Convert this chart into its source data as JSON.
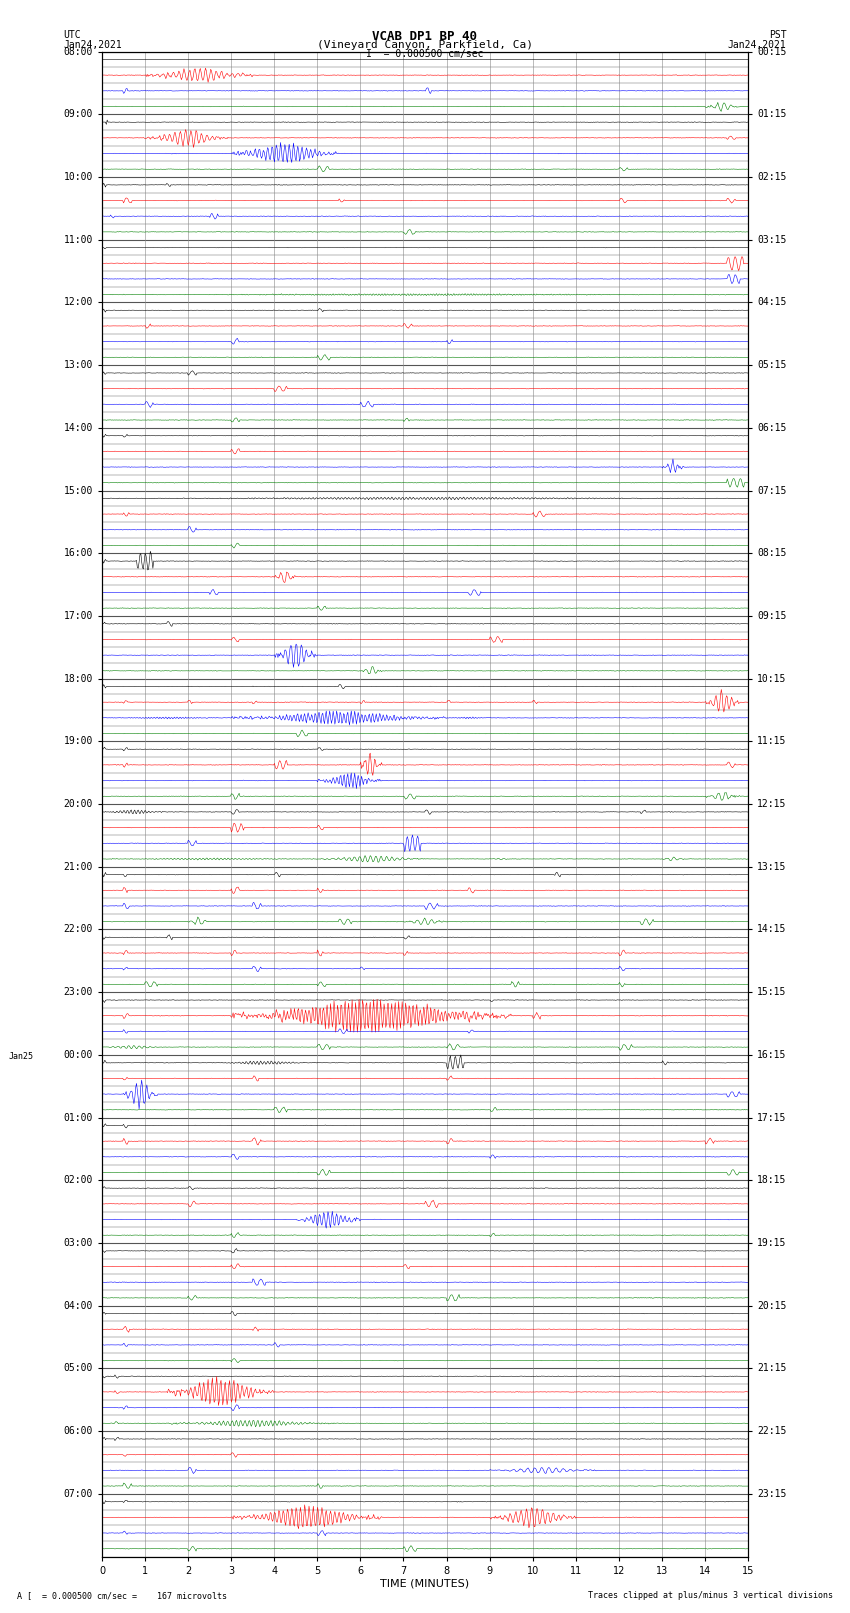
{
  "title_line1": "VCAB DP1 BP 40",
  "title_line2": "(Vineyard Canyon, Parkfield, Ca)",
  "scale_label": "I  = 0.000500 cm/sec",
  "xlabel": "TIME (MINUTES)",
  "bottom_left": "A [  = 0.000500 cm/sec =    167 microvolts",
  "bottom_right": "Traces clipped at plus/minus 3 vertical divisions",
  "utc_hour_labels": [
    "08:00",
    "09:00",
    "10:00",
    "11:00",
    "12:00",
    "13:00",
    "14:00",
    "15:00",
    "16:00",
    "17:00",
    "18:00",
    "19:00",
    "20:00",
    "21:00",
    "22:00",
    "23:00",
    "00:00",
    "01:00",
    "02:00",
    "03:00",
    "04:00",
    "05:00",
    "06:00",
    "07:00"
  ],
  "pst_hour_labels": [
    "00:15",
    "01:15",
    "02:15",
    "03:15",
    "04:15",
    "05:15",
    "06:15",
    "07:15",
    "08:15",
    "09:15",
    "10:15",
    "11:15",
    "12:15",
    "13:15",
    "14:15",
    "15:15",
    "16:15",
    "17:15",
    "18:15",
    "19:15",
    "20:15",
    "21:15",
    "22:15",
    "23:15"
  ],
  "n_rows": 96,
  "n_hours": 24,
  "rows_per_hour": 4,
  "minutes_per_row": 15,
  "color_cycle": [
    "#000000",
    "#ff0000",
    "#0000ff",
    "#008000"
  ],
  "background_color": "#ffffff",
  "grid_color": "#aaaaaa",
  "fig_width": 8.5,
  "fig_height": 16.13,
  "amp_scale": 0.35,
  "noise_level": 0.015,
  "jan25_row": 64
}
